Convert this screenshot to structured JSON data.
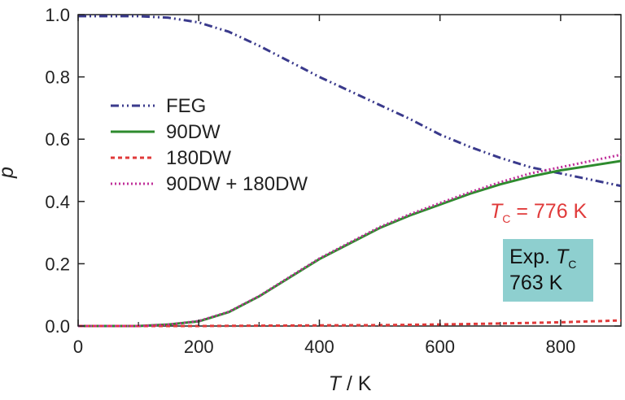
{
  "chart_data": {
    "type": "line",
    "xlabel": {
      "italic": "T",
      "rest": " / K"
    },
    "ylabel": "p",
    "xlim": [
      0,
      900
    ],
    "ylim": [
      0.0,
      1.0
    ],
    "xticks": [
      0,
      200,
      400,
      600,
      800
    ],
    "xtick_labels": [
      "0",
      "200",
      "400",
      "600",
      "800"
    ],
    "yticks": [
      0.0,
      0.2,
      0.4,
      0.6,
      0.8,
      1.0
    ],
    "ytick_labels": [
      "0.0",
      "0.2",
      "0.4",
      "0.6",
      "0.8",
      "1.0"
    ],
    "grid": false,
    "legend_position": "left",
    "series": [
      {
        "name": "FEG",
        "color": "#3a3a8c",
        "style": "dashdot",
        "x": [
          0,
          100,
          150,
          200,
          250,
          300,
          350,
          400,
          450,
          500,
          550,
          600,
          650,
          700,
          750,
          800,
          850,
          900
        ],
        "y": [
          0.995,
          0.995,
          0.99,
          0.975,
          0.945,
          0.9,
          0.85,
          0.8,
          0.755,
          0.71,
          0.665,
          0.615,
          0.575,
          0.54,
          0.51,
          0.49,
          0.47,
          0.45
        ]
      },
      {
        "name": "90DW",
        "color": "#2e8b2e",
        "style": "solid",
        "x": [
          0,
          100,
          150,
          200,
          250,
          300,
          350,
          400,
          450,
          500,
          550,
          600,
          650,
          700,
          750,
          800,
          850,
          900
        ],
        "y": [
          0.0,
          0.0,
          0.005,
          0.015,
          0.045,
          0.095,
          0.155,
          0.215,
          0.265,
          0.315,
          0.355,
          0.39,
          0.425,
          0.455,
          0.48,
          0.5,
          0.515,
          0.53
        ]
      },
      {
        "name": "180DW",
        "color": "#e03a3a",
        "style": "dashed",
        "x": [
          0,
          100,
          200,
          300,
          400,
          500,
          600,
          700,
          800,
          900
        ],
        "y": [
          0.0,
          0.0,
          0.0,
          0.001,
          0.002,
          0.003,
          0.005,
          0.008,
          0.012,
          0.018
        ]
      },
      {
        "name": "90DW + 180DW",
        "color": "#c0309a",
        "style": "dotted",
        "x": [
          0,
          100,
          150,
          200,
          250,
          300,
          350,
          400,
          450,
          500,
          550,
          600,
          650,
          700,
          750,
          800,
          850,
          900
        ],
        "y": [
          0.0,
          0.0,
          0.005,
          0.016,
          0.046,
          0.096,
          0.157,
          0.217,
          0.268,
          0.318,
          0.359,
          0.395,
          0.43,
          0.462,
          0.49,
          0.51,
          0.53,
          0.55
        ]
      }
    ],
    "annotations": {
      "tc": {
        "italic": "T",
        "sub": "C",
        "rest": " = 776 K",
        "color": "#e03a3a"
      },
      "exp": {
        "line1_text": "Exp. ",
        "line1_italic": "T",
        "line1_sub": "C",
        "line2": "763 K",
        "box_color": "#8ecfcf"
      }
    }
  }
}
